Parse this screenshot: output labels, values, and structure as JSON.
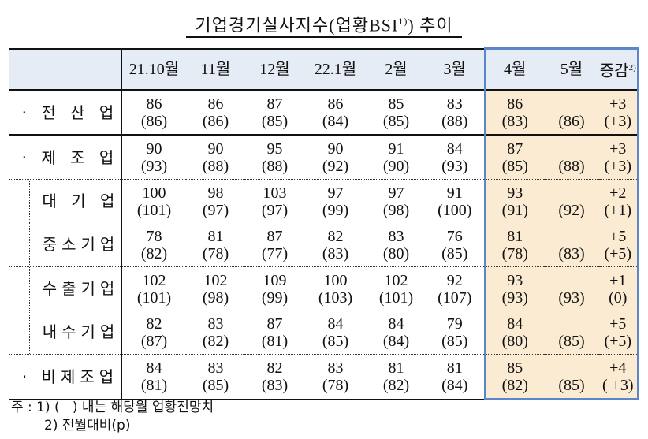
{
  "title": "기업경기실사지수(업황BSI",
  "title_sup": "1)",
  "title_suffix": ") 추이",
  "columns": [
    "21.10월",
    "11월",
    "12월",
    "22.1월",
    "2월",
    "3월",
    "4월",
    "5월",
    "증감"
  ],
  "change_sup": "2)",
  "rows": [
    {
      "label": "· 전 산 업",
      "values": [
        "86",
        "86",
        "87",
        "86",
        "85",
        "83",
        "86",
        "",
        "+3"
      ],
      "forecasts": [
        "(86)",
        "(86)",
        "(85)",
        "(84)",
        "(85)",
        "(88)",
        "(83)",
        "(86)",
        "(+3)"
      ]
    },
    {
      "label": "· 제 조 업",
      "values": [
        "90",
        "90",
        "95",
        "90",
        "91",
        "84",
        "87",
        "",
        "+3"
      ],
      "forecasts": [
        "(93)",
        "(88)",
        "(88)",
        "(92)",
        "(90)",
        "(93)",
        "(85)",
        "(88)",
        "(+3)"
      ]
    },
    {
      "label": "대 기 업",
      "values": [
        "100",
        "98",
        "103",
        "97",
        "97",
        "91",
        "93",
        "",
        "+2"
      ],
      "forecasts": [
        "(101)",
        "(97)",
        "(97)",
        "(99)",
        "(98)",
        "(100)",
        "(91)",
        "(92)",
        "(+1)"
      ]
    },
    {
      "label": "중소기업",
      "values": [
        "78",
        "81",
        "87",
        "82",
        "83",
        "76",
        "81",
        "",
        "+5"
      ],
      "forecasts": [
        "(82)",
        "(78)",
        "(77)",
        "(83)",
        "(80)",
        "(85)",
        "(78)",
        "(83)",
        "(+5)"
      ]
    },
    {
      "label": "수출기업",
      "values": [
        "102",
        "102",
        "109",
        "100",
        "102",
        "92",
        "93",
        "",
        "+1"
      ],
      "forecasts": [
        "(101)",
        "(98)",
        "(99)",
        "(103)",
        "(101)",
        "(107)",
        "(93)",
        "(93)",
        "(0)"
      ]
    },
    {
      "label": "내수기업",
      "values": [
        "82",
        "83",
        "87",
        "84",
        "84",
        "79",
        "84",
        "",
        "+5"
      ],
      "forecasts": [
        "(87)",
        "(82)",
        "(81)",
        "(85)",
        "(84)",
        "(85)",
        "(80)",
        "(85)",
        "(+5)"
      ]
    },
    {
      "label": "· 비제조업",
      "values": [
        "84",
        "83",
        "82",
        "83",
        "81",
        "81",
        "85",
        "",
        "+4"
      ],
      "forecasts": [
        "(81)",
        "(85)",
        "(83)",
        "(78)",
        "(82)",
        "(84)",
        "(82)",
        "(85)",
        "( +3)"
      ]
    }
  ],
  "notes": {
    "line1": "주 : 1) (   ) 내는 해당월 업황전망치",
    "line2": "2) 전월대비(p)"
  },
  "colors": {
    "header_bg": "#e6ecf5",
    "highlight_bg": "#fbebd2",
    "highlight_border": "#5b86c7"
  }
}
